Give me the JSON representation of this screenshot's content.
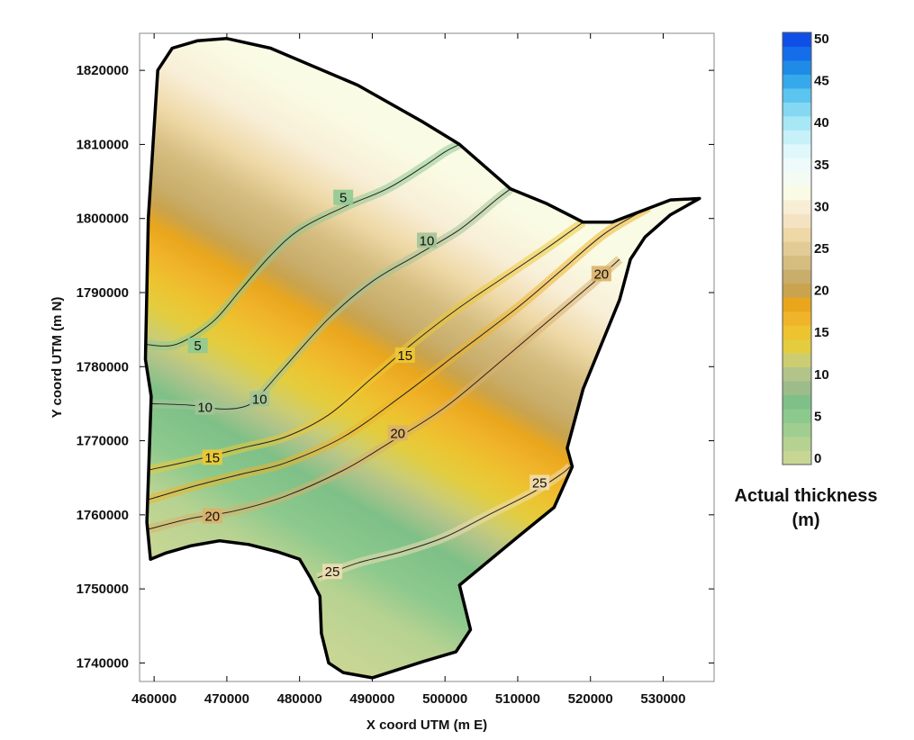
{
  "chart_data": {
    "type": "contour_map",
    "xlabel": "X coord UTM (m E)",
    "ylabel": "Y coord UTM (m N)",
    "xlim": [
      458000,
      537000
    ],
    "ylim": [
      1737500,
      1825000
    ],
    "x_ticks": [
      {
        "value": 460000,
        "label": "460000"
      },
      {
        "value": 470000,
        "label": "470000"
      },
      {
        "value": 480000,
        "label": "480000"
      },
      {
        "value": 490000,
        "label": "490000"
      },
      {
        "value": 500000,
        "label": "500000"
      },
      {
        "value": 510000,
        "label": "510000"
      },
      {
        "value": 520000,
        "label": "520000"
      },
      {
        "value": 530000,
        "label": "530000"
      }
    ],
    "y_ticks": [
      {
        "value": 1740000,
        "label": "1740000"
      },
      {
        "value": 1750000,
        "label": "1750000"
      },
      {
        "value": 1760000,
        "label": "1760000"
      },
      {
        "value": 1770000,
        "label": "1770000"
      },
      {
        "value": 1780000,
        "label": "1780000"
      },
      {
        "value": 1790000,
        "label": "1790000"
      },
      {
        "value": 1800000,
        "label": "1800000"
      },
      {
        "value": 1810000,
        "label": "1810000"
      },
      {
        "value": 1820000,
        "label": "1820000"
      }
    ],
    "boundary": [
      [
        459500,
        1754000
      ],
      [
        459000,
        1759000
      ],
      [
        459600,
        1776000
      ],
      [
        458800,
        1781000
      ],
      [
        459200,
        1800000
      ],
      [
        460500,
        1820000
      ],
      [
        462500,
        1823000
      ],
      [
        466000,
        1824000
      ],
      [
        470000,
        1824300
      ],
      [
        476000,
        1823000
      ],
      [
        488000,
        1818000
      ],
      [
        497000,
        1813000
      ],
      [
        502000,
        1810000
      ],
      [
        509000,
        1804000
      ],
      [
        514000,
        1802000
      ],
      [
        519000,
        1799500
      ],
      [
        523000,
        1799500
      ],
      [
        531000,
        1802500
      ],
      [
        535000,
        1802700
      ],
      [
        531000,
        1800500
      ],
      [
        527500,
        1797500
      ],
      [
        525500,
        1794500
      ],
      [
        524000,
        1789000
      ],
      [
        519000,
        1777000
      ],
      [
        516800,
        1769000
      ],
      [
        517500,
        1766500
      ],
      [
        515000,
        1761000
      ],
      [
        510000,
        1757000
      ],
      [
        502000,
        1750500
      ],
      [
        503500,
        1744500
      ],
      [
        501500,
        1741500
      ],
      [
        497000,
        1740200
      ],
      [
        490000,
        1738000
      ],
      [
        486000,
        1738700
      ],
      [
        484000,
        1740000
      ],
      [
        483000,
        1744000
      ],
      [
        482800,
        1749000
      ],
      [
        481500,
        1751500
      ],
      [
        480000,
        1754000
      ],
      [
        477000,
        1755000
      ],
      [
        473000,
        1756000
      ],
      [
        469000,
        1756500
      ],
      [
        465000,
        1755800
      ],
      [
        461500,
        1754800
      ]
    ],
    "contours": [
      {
        "level": 5,
        "color": "#8fca93",
        "points": [
          [
            458800,
            1783000
          ],
          [
            463000,
            1783000
          ],
          [
            468000,
            1786000
          ],
          [
            472000,
            1790500
          ],
          [
            476000,
            1795000
          ],
          [
            480000,
            1798500
          ],
          [
            486000,
            1801500
          ],
          [
            492000,
            1804000
          ],
          [
            497000,
            1807000
          ],
          [
            500000,
            1809000
          ],
          [
            502000,
            1810000
          ]
        ],
        "labels": [
          {
            "text": "5",
            "x": 466000,
            "y": 1782800
          },
          {
            "text": "5",
            "x": 486000,
            "y": 1802800
          }
        ]
      },
      {
        "level": 10,
        "color": "#a2c496",
        "points": [
          [
            459500,
            1775000
          ],
          [
            465000,
            1774800
          ],
          [
            469000,
            1774300
          ],
          [
            472000,
            1774500
          ],
          [
            474000,
            1775600
          ],
          [
            478000,
            1780000
          ],
          [
            484000,
            1786500
          ],
          [
            490000,
            1791500
          ],
          [
            496000,
            1795000
          ],
          [
            502000,
            1798500
          ],
          [
            507000,
            1802500
          ],
          [
            509000,
            1804000
          ]
        ],
        "labels": [
          {
            "text": "10",
            "x": 467000,
            "y": 1774500
          },
          {
            "text": "10",
            "x": 474500,
            "y": 1775600
          },
          {
            "text": "10",
            "x": 497500,
            "y": 1797000
          }
        ]
      },
      {
        "level": 15,
        "color": "#eec935",
        "points": [
          [
            459000,
            1766000
          ],
          [
            466000,
            1767500
          ],
          [
            472000,
            1769000
          ],
          [
            478000,
            1770500
          ],
          [
            484000,
            1773500
          ],
          [
            490000,
            1778500
          ],
          [
            496000,
            1783500
          ],
          [
            502000,
            1788000
          ],
          [
            508000,
            1792000
          ],
          [
            514000,
            1796000
          ],
          [
            519000,
            1799500
          ]
        ],
        "labels": [
          {
            "text": "15",
            "x": 468000,
            "y": 1767700
          },
          {
            "text": "15",
            "x": 494500,
            "y": 1781500
          }
        ]
      },
      {
        "level": 17.5,
        "color": "#efb52a",
        "points": [
          [
            459000,
            1762000
          ],
          [
            466000,
            1764000
          ],
          [
            472000,
            1765500
          ],
          [
            478000,
            1767000
          ],
          [
            486000,
            1770500
          ],
          [
            494000,
            1776000
          ],
          [
            502000,
            1782000
          ],
          [
            510000,
            1788000
          ],
          [
            516000,
            1793000
          ],
          [
            522000,
            1798000
          ],
          [
            528000,
            1801500
          ]
        ],
        "labels": []
      },
      {
        "level": 20,
        "color": "#dab16a",
        "points": [
          [
            459000,
            1758000
          ],
          [
            465000,
            1759500
          ],
          [
            471000,
            1760500
          ],
          [
            478000,
            1762500
          ],
          [
            486000,
            1766000
          ],
          [
            492000,
            1769500
          ],
          [
            500000,
            1774500
          ],
          [
            508000,
            1781000
          ],
          [
            514000,
            1786000
          ],
          [
            520000,
            1791000
          ],
          [
            524000,
            1794500
          ]
        ],
        "labels": [
          {
            "text": "20",
            "x": 468000,
            "y": 1759800
          },
          {
            "text": "20",
            "x": 493500,
            "y": 1771000
          },
          {
            "text": "20",
            "x": 521500,
            "y": 1792500
          }
        ]
      },
      {
        "level": 25,
        "color": "#f0ddb0",
        "points": [
          [
            482500,
            1751500
          ],
          [
            488000,
            1753500
          ],
          [
            494000,
            1755000
          ],
          [
            500000,
            1757000
          ],
          [
            506000,
            1760000
          ],
          [
            512000,
            1763000
          ],
          [
            516000,
            1765500
          ],
          [
            517200,
            1766500
          ]
        ],
        "labels": [
          {
            "text": "25",
            "x": 484500,
            "y": 1752300
          },
          {
            "text": "25",
            "x": 513000,
            "y": 1764300
          }
        ]
      }
    ],
    "colorbar": {
      "title": [
        "Actual thickness",
        "(m)"
      ],
      "min": 0,
      "max": 50,
      "tick_values": [
        0,
        5,
        10,
        15,
        20,
        25,
        30,
        35,
        40,
        45,
        50
      ],
      "tick_labels": [
        "0",
        "5",
        "10",
        "15",
        "20",
        "25",
        "30",
        "35",
        "40",
        "45",
        "50"
      ],
      "colors": [
        "#c8d694",
        "#b6d291",
        "#a0cd90",
        "#8cc98d",
        "#7ec088",
        "#9cbc8a",
        "#b2c48a",
        "#cccd72",
        "#e3cd3f",
        "#edc330",
        "#f0b42a",
        "#e9a61d",
        "#c9a34d",
        "#c8ad6b",
        "#d5bd80",
        "#e2cb94",
        "#eed8a6",
        "#f4e3c3",
        "#f8eed6",
        "#fafbe4",
        "#f4fbf3",
        "#eefbfa",
        "#e0f7fb",
        "#c7f1f9",
        "#a8e7f5",
        "#84d8f2",
        "#5bc4ef",
        "#35a9ea",
        "#1f8be6",
        "#156dea",
        "#0f4fe8"
      ]
    }
  }
}
